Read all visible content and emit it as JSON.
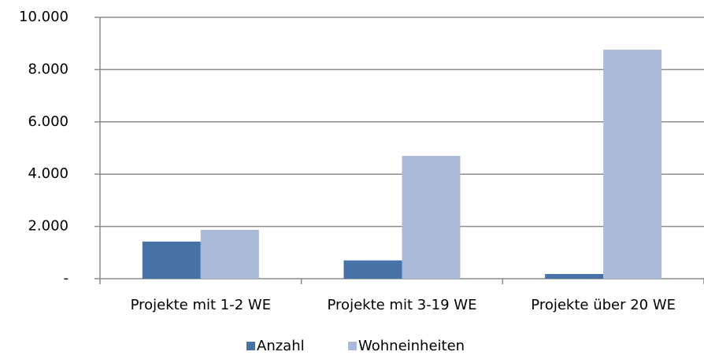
{
  "chart_data": {
    "type": "bar",
    "categories": [
      "Projekte mit 1-2 WE",
      "Projekte mit 3-19 WE",
      "Projekte über 20 WE"
    ],
    "series": [
      {
        "name": "Anzahl",
        "color": "#4672a6",
        "values": [
          1420,
          700,
          180
        ]
      },
      {
        "name": "Wohneinheiten",
        "color": "#a9bad8",
        "values": [
          1870,
          4700,
          8760
        ]
      }
    ],
    "ylim": [
      0,
      10000
    ],
    "yticks": [
      {
        "value": 0,
        "label": "-"
      },
      {
        "value": 2000,
        "label": "2.000"
      },
      {
        "value": 4000,
        "label": "4.000"
      },
      {
        "value": 6000,
        "label": "6.000"
      },
      {
        "value": 8000,
        "label": "8.000"
      },
      {
        "value": 10000,
        "label": "10.000"
      }
    ],
    "grid": true,
    "legend": "bottom"
  }
}
